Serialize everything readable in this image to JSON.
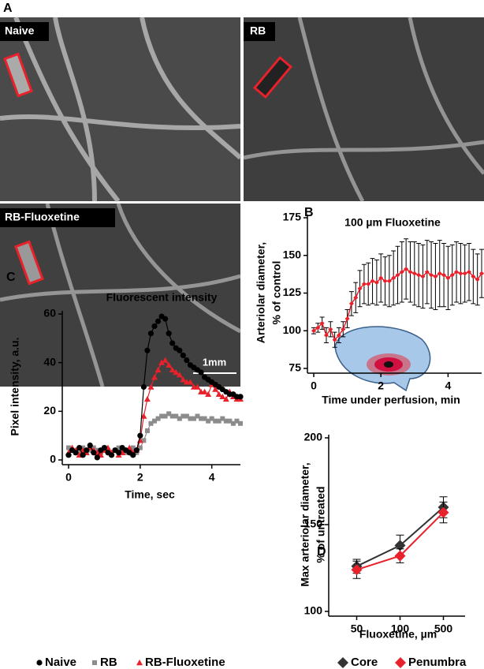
{
  "images": {
    "label": "A",
    "panels": [
      "Naive",
      "RB",
      "RB-Fluoxetine"
    ],
    "scale_bar": "1mm"
  },
  "chart_data": [
    {
      "type": "line",
      "label": "B",
      "title": "100 µm Fluoxetine",
      "xlabel": "Time under perfusion, min",
      "ylabel": [
        "Arteriolar diameter,",
        "% of control"
      ],
      "x": [
        0,
        0.125,
        0.25,
        0.375,
        0.5,
        0.625,
        0.75,
        0.875,
        1,
        1.125,
        1.25,
        1.375,
        1.5,
        1.625,
        1.75,
        1.875,
        2,
        2.125,
        2.25,
        2.375,
        2.5,
        2.625,
        2.75,
        2.875,
        3,
        3.125,
        3.25,
        3.375,
        3.5,
        3.625,
        3.75,
        3.875,
        4,
        4.125,
        4.25,
        4.375,
        4.5,
        4.625,
        4.75,
        4.875,
        5
      ],
      "values": [
        100,
        102,
        105,
        97,
        101,
        94,
        97,
        101,
        108,
        118,
        122,
        128,
        131,
        131,
        133,
        132,
        135,
        133,
        133,
        135,
        137,
        139,
        141,
        139,
        138,
        137,
        136,
        139,
        137,
        136,
        138,
        137,
        135,
        137,
        139,
        138,
        138,
        139,
        136,
        134,
        138
      ],
      "errors": [
        2,
        3,
        4,
        5,
        5,
        5,
        5,
        5,
        6,
        8,
        10,
        12,
        13,
        14,
        15,
        15,
        16,
        16,
        17,
        18,
        19,
        20,
        20,
        20,
        21,
        21,
        21,
        21,
        22,
        22,
        22,
        21,
        21,
        20,
        20,
        20,
        19,
        19,
        18,
        17,
        16
      ],
      "color": "#e8212b",
      "marker": "diamond",
      "xlim": [
        0,
        5
      ],
      "xticks": [
        0,
        2,
        4
      ],
      "ylim": [
        75,
        175
      ],
      "yticks": [
        75,
        100,
        125,
        150,
        175
      ]
    },
    {
      "type": "line",
      "label": "C",
      "title": "Fluorescent intensity",
      "xlabel": "Time, sec",
      "ylabel": [
        "Pixel intensity, a.u."
      ],
      "x": [
        0,
        0.1,
        0.2,
        0.3,
        0.4,
        0.5,
        0.6,
        0.7,
        0.8,
        0.9,
        1,
        1.1,
        1.2,
        1.3,
        1.4,
        1.5,
        1.6,
        1.7,
        1.8,
        1.9,
        2,
        2.1,
        2.2,
        2.3,
        2.4,
        2.5,
        2.6,
        2.7,
        2.8,
        2.9,
        3,
        3.1,
        3.2,
        3.3,
        3.4,
        3.5,
        3.6,
        3.7,
        3.8,
        3.9,
        4,
        4.1,
        4.2,
        4.3,
        4.4,
        4.5,
        4.6,
        4.7,
        4.8
      ],
      "series": [
        {
          "name": "RB",
          "color": "#8c8c8c",
          "marker": "square",
          "values": [
            5,
            4,
            3,
            4,
            5,
            3,
            4,
            5,
            4,
            3,
            5,
            4,
            3,
            4,
            5,
            4,
            3,
            4,
            5,
            3,
            5,
            8,
            12,
            15,
            16,
            17,
            18,
            18,
            19,
            18,
            18,
            17,
            18,
            18,
            17,
            17,
            18,
            17,
            17,
            16,
            17,
            16,
            16,
            17,
            16,
            16,
            15,
            16,
            15
          ]
        },
        {
          "name": "RB-Fluoxetine",
          "color": "#e8212b",
          "marker": "triangle",
          "values": [
            3,
            5,
            4,
            2,
            4,
            3,
            5,
            4,
            3,
            2,
            4,
            5,
            3,
            4,
            2,
            3,
            4,
            5,
            3,
            4,
            8,
            18,
            25,
            30,
            34,
            37,
            40,
            41,
            39,
            37,
            36,
            35,
            33,
            32,
            32,
            30,
            30,
            28,
            28,
            27,
            31,
            29,
            27,
            26,
            25,
            28,
            26,
            25,
            25
          ]
        },
        {
          "name": "Naive",
          "color": "#000000",
          "marker": "circle",
          "values": [
            2,
            4,
            3,
            5,
            2,
            4,
            6,
            3,
            1,
            4,
            5,
            3,
            2,
            4,
            3,
            5,
            4,
            3,
            2,
            4,
            10,
            30,
            45,
            52,
            55,
            57,
            59,
            58,
            52,
            48,
            46,
            45,
            43,
            41,
            39,
            38,
            37,
            36,
            34,
            33,
            32,
            31,
            30,
            29,
            28,
            27,
            27,
            26,
            26
          ]
        }
      ],
      "xlim": [
        0,
        4.8
      ],
      "xticks": [
        0,
        2,
        4
      ],
      "ylim": [
        0,
        60
      ],
      "yticks": [
        0,
        20,
        40,
        60
      ]
    },
    {
      "type": "line",
      "label": "D",
      "xlabel": "Fluoxetine, µm",
      "ylabel": [
        "Max arteriolar diameter,",
        "% of untreated"
      ],
      "categories": [
        "50",
        "100",
        "500"
      ],
      "series": [
        {
          "name": "Core",
          "color": "#333333",
          "marker": "diamond",
          "values": [
            126,
            138,
            160
          ],
          "errors": [
            4,
            6,
            6
          ]
        },
        {
          "name": "Penumbra",
          "color": "#e8212b",
          "marker": "diamond",
          "values": [
            124,
            132,
            157
          ],
          "errors": [
            5,
            4,
            6
          ]
        }
      ],
      "ylim": [
        100,
        200
      ],
      "yticks": [
        100,
        150,
        200
      ]
    }
  ]
}
